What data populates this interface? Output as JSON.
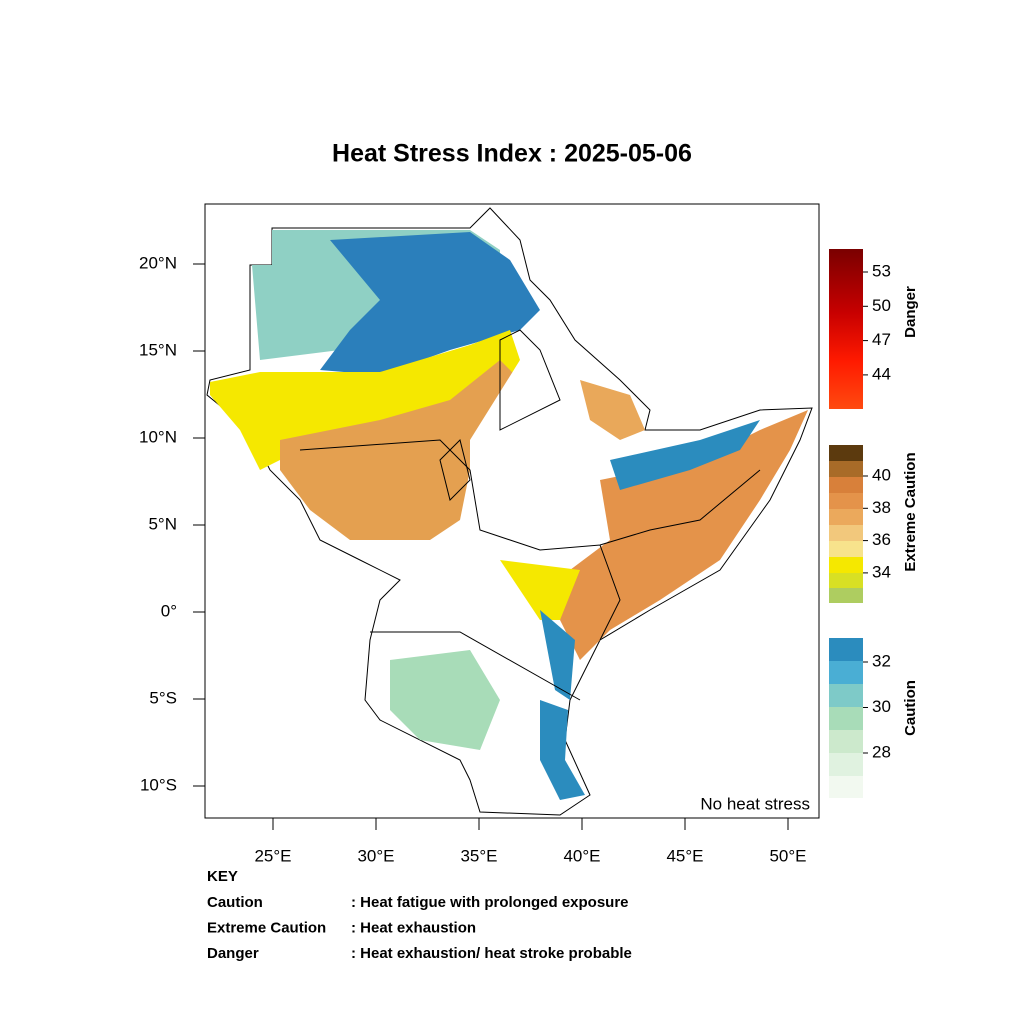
{
  "title": "Heat Stress Index : 2025-05-06",
  "map": {
    "lat_labels": [
      "20°N",
      "15°N",
      "10°N",
      "5°N",
      "0°",
      "5°S",
      "10°S"
    ],
    "lon_labels": [
      "25°E",
      "30°E",
      "35°E",
      "40°E",
      "45°E",
      "50°E"
    ],
    "note": "No heat stress"
  },
  "legend": {
    "groups": [
      {
        "name": "Danger",
        "ticks": [
          53,
          50,
          47,
          44
        ]
      },
      {
        "name": "Extreme Caution",
        "ticks": [
          40,
          38,
          36,
          34
        ]
      },
      {
        "name": "Caution",
        "ticks": [
          32,
          30,
          28
        ]
      }
    ]
  },
  "key": {
    "title": "KEY",
    "rows": [
      [
        "Caution",
        ": Heat fatigue with prolonged exposure"
      ],
      [
        "Extreme Caution",
        ": Heat exhaustion"
      ],
      [
        "Danger",
        ": Heat exhaustion/ heat stroke probable"
      ]
    ]
  }
}
